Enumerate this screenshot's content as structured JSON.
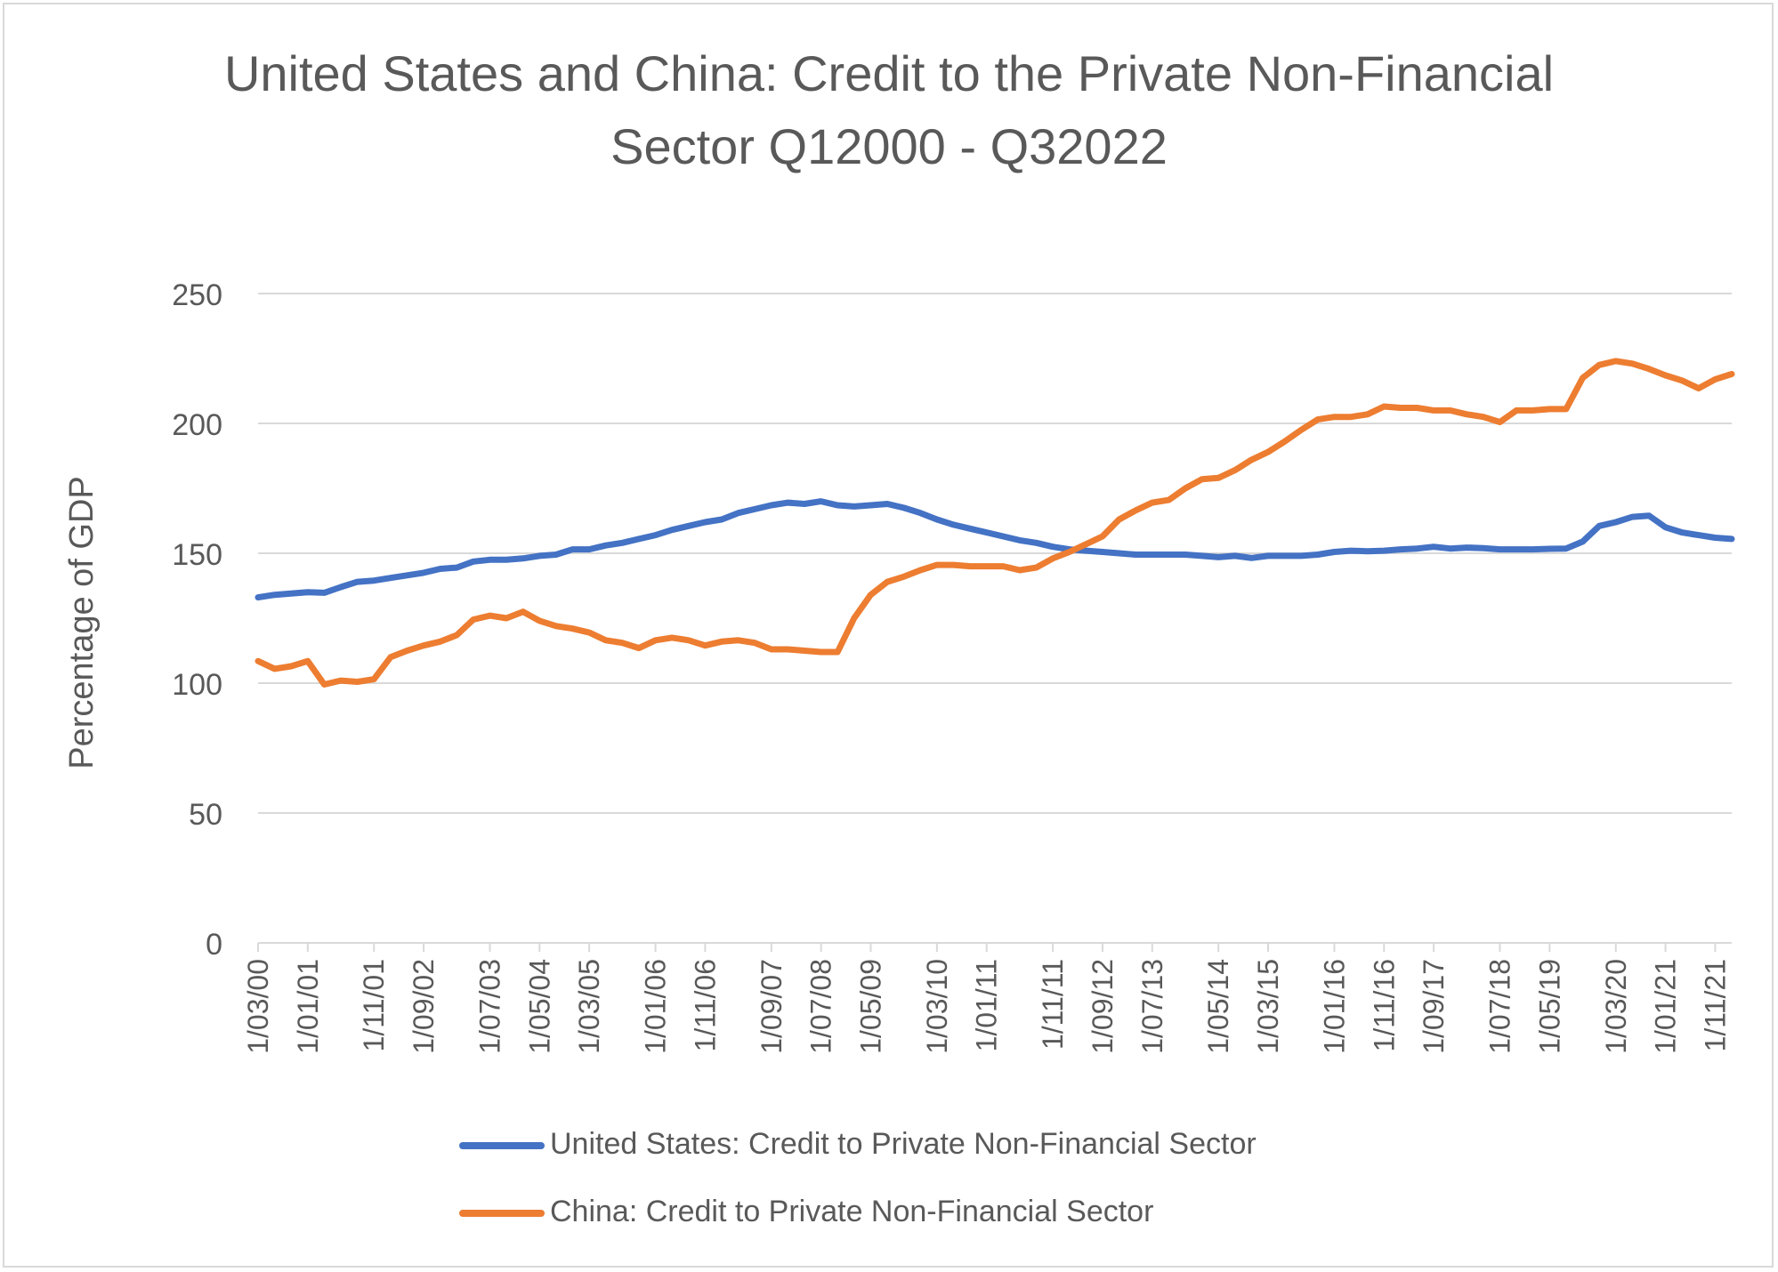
{
  "chart_data": {
    "type": "line",
    "title": "United States and China: Credit to the Private Non-Financial Sector Q12000 - Q32022",
    "title_lines": [
      "United States and China: Credit to the Private Non-Financial",
      "Sector Q12000 - Q32022"
    ],
    "xlabel": "",
    "ylabel": "Percentage of GDP",
    "ylim": [
      0,
      250
    ],
    "yticks": [
      0,
      50,
      100,
      150,
      200,
      250
    ],
    "grid": true,
    "legend_position": "bottom",
    "x_tick_labels": [
      "1/03/00",
      "1/01/01",
      "1/11/01",
      "1/09/02",
      "1/07/03",
      "1/05/04",
      "1/03/05",
      "1/01/06",
      "1/11/06",
      "1/09/07",
      "1/07/08",
      "1/05/09",
      "1/03/10",
      "1/01/11",
      "1/11/11",
      "1/09/12",
      "1/07/13",
      "1/05/14",
      "1/03/15",
      "1/01/16",
      "1/11/16",
      "1/09/17",
      "1/07/18",
      "1/05/19",
      "1/03/20",
      "1/01/21",
      "1/11/21"
    ],
    "series": [
      {
        "name": "United States: Credit to Private Non-Financial Sector",
        "color": "#4472c4",
        "values": [
          133,
          134,
          134.5,
          135,
          134.8,
          137,
          139,
          139.5,
          140.5,
          141.5,
          142.5,
          144,
          144.5,
          146.8,
          147.5,
          147.5,
          148,
          149,
          149.5,
          151.5,
          151.5,
          153,
          154,
          155.5,
          157,
          159,
          160.5,
          162,
          163,
          165.5,
          167,
          168.5,
          169.5,
          169,
          170,
          168.5,
          168,
          168.5,
          169,
          167.5,
          165.5,
          163,
          161,
          159.5,
          158,
          156.5,
          155,
          154,
          152.5,
          151.5,
          151,
          150.5,
          150,
          149.5,
          149.5,
          149.5,
          149.5,
          149,
          148.5,
          149,
          148.2,
          149,
          149,
          149,
          149.5,
          150.5,
          151,
          150.8,
          151,
          151.5,
          151.8,
          152.5,
          151.8,
          152.2,
          152,
          151.5,
          151.5,
          151.5,
          151.7,
          151.8,
          154.5,
          160.5,
          162,
          164,
          164.5,
          160,
          158,
          157,
          156,
          155.5
        ]
      },
      {
        "name": "China: Credit to Private Non-Financial Sector",
        "color": "#ed7d31",
        "values": [
          108.5,
          105.5,
          106.5,
          108.5,
          99.5,
          101,
          100.5,
          101.5,
          110,
          112.5,
          114.5,
          116,
          118.5,
          124.5,
          126,
          125,
          127.5,
          124,
          122,
          121,
          119.5,
          116.5,
          115.5,
          113.5,
          116.5,
          117.5,
          116.5,
          114.5,
          116,
          116.5,
          115.5,
          113,
          113,
          112.5,
          112,
          112,
          125,
          134,
          139,
          141,
          143.5,
          145.5,
          145.5,
          145,
          145,
          145,
          143.5,
          144.5,
          148,
          150.5,
          153.5,
          156.5,
          163,
          166.5,
          169.5,
          170.5,
          175,
          178.5,
          179,
          182,
          186,
          189,
          193,
          197.5,
          201.5,
          202.5,
          202.5,
          203.5,
          206.5,
          206,
          206,
          205,
          205,
          203.5,
          202.5,
          200.5,
          205,
          205,
          205.5,
          205.5,
          217.5,
          222.5,
          224,
          223,
          221,
          218.5,
          216.5,
          213.5,
          217,
          219
        ]
      }
    ]
  }
}
